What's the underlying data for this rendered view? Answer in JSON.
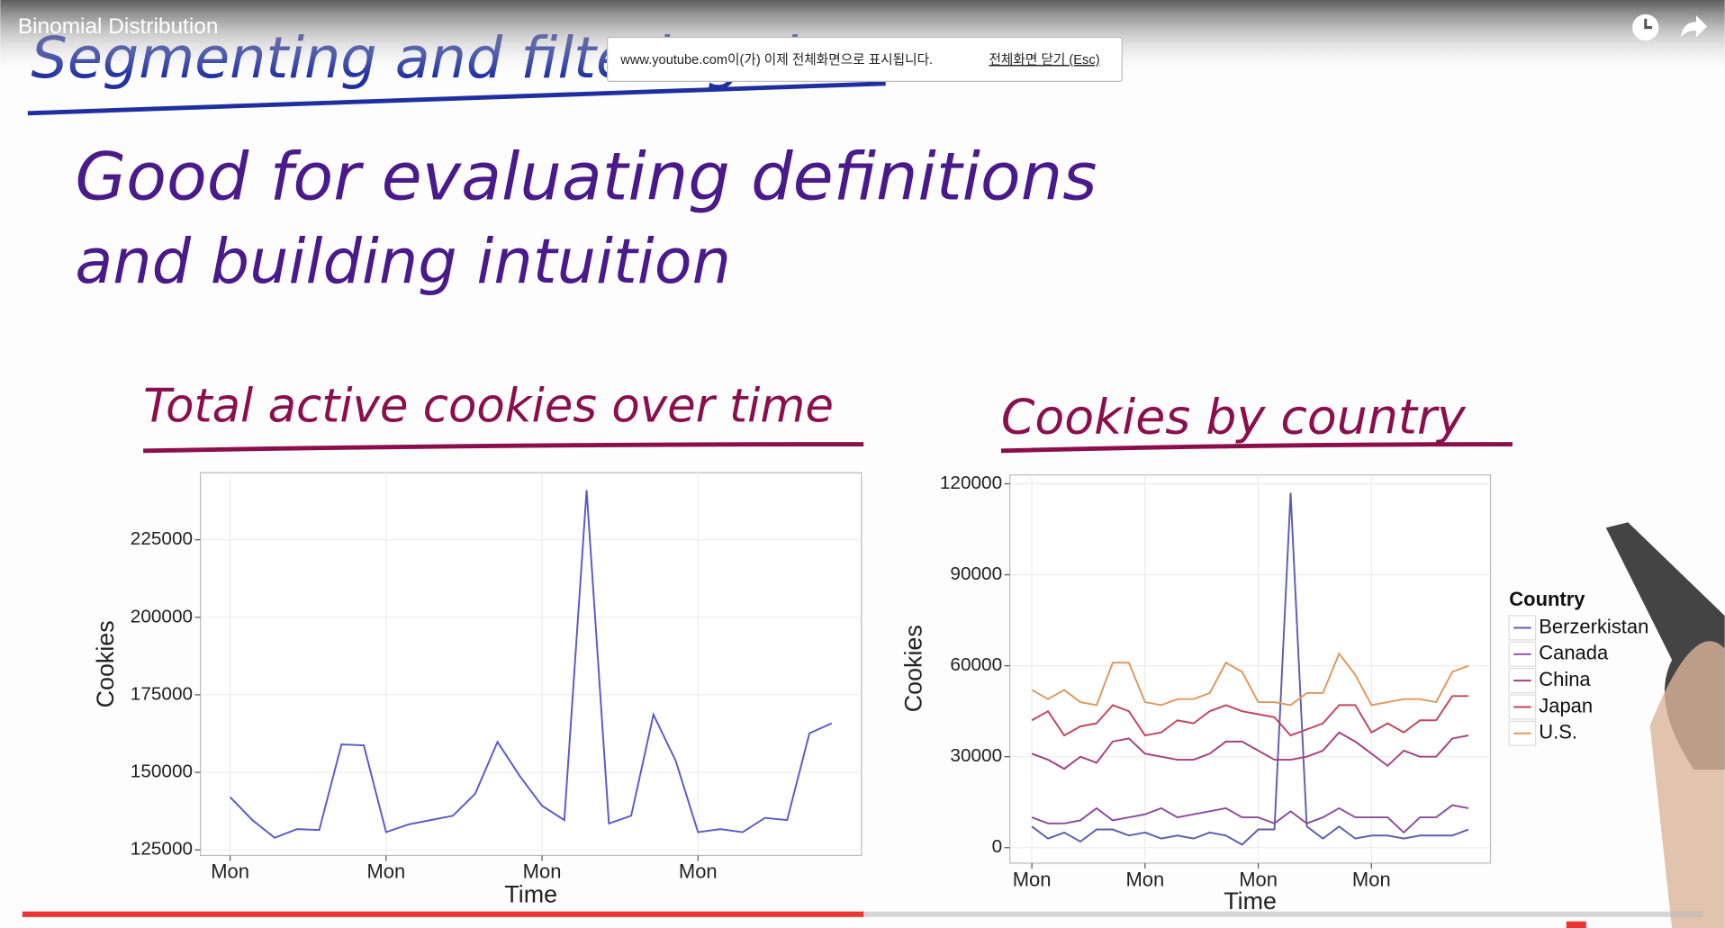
{
  "video": {
    "title": "Binomial Distribution"
  },
  "notification": {
    "message": "www.youtube.com이(가) 이제 전체화면으로 표시됩니다.",
    "link": "전체화면 닫기 (Esc)"
  },
  "slide": {
    "heading": "Segmenting and filtering data",
    "lines": [
      "Good for evaluating definitions",
      "and building intuition"
    ]
  },
  "chart_data": [
    {
      "type": "line",
      "title": "Total active cookies over time",
      "xlabel": "Time",
      "ylabel": "Cookies",
      "categories": [
        "Mon",
        null,
        null,
        null,
        null,
        null,
        null,
        "Mon",
        null,
        null,
        null,
        null,
        null,
        null,
        "Mon",
        null,
        null,
        null,
        null,
        null,
        null,
        "Mon",
        null,
        null,
        null,
        null,
        null,
        null
      ],
      "series": [
        {
          "name": null,
          "color": "#5a5ac8",
          "values": [
            142000,
            134600,
            128900,
            131700,
            131400,
            159000,
            158700,
            130700,
            133200,
            134600,
            136000,
            143100,
            159800,
            148800,
            139200,
            134600,
            241000,
            133500,
            136000,
            168600,
            153700,
            130700,
            131700,
            130700,
            135300,
            134600,
            162600,
            165800
          ]
        }
      ],
      "ylim": [
        123200,
        246600
      ],
      "yticks": [
        125000,
        150000,
        175000,
        200000,
        225000
      ],
      "grid": true
    },
    {
      "type": "line",
      "title": "Cookies by country",
      "xlabel": "Time",
      "ylabel": "Cookies",
      "legend_title": "Country",
      "legend": "right",
      "categories": [
        "Mon",
        null,
        null,
        null,
        null,
        null,
        null,
        "Mon",
        null,
        null,
        null,
        null,
        null,
        null,
        "Mon",
        null,
        null,
        null,
        null,
        null,
        null,
        "Mon",
        null,
        null,
        null,
        null,
        null,
        null
      ],
      "series": [
        {
          "name": "Berzerkistan",
          "color": "#5e5eb0",
          "values": [
            7000,
            3000,
            5000,
            2000,
            6000,
            6000,
            4000,
            5000,
            3000,
            4000,
            3000,
            5000,
            4000,
            1000,
            6000,
            6000,
            117000,
            7000,
            3000,
            7000,
            3000,
            4000,
            4000,
            3000,
            4000,
            4000,
            4000,
            6000
          ]
        },
        {
          "name": "Canada",
          "color": "#8a4c9c",
          "values": [
            10000,
            8000,
            8000,
            9000,
            13000,
            9000,
            10000,
            11000,
            13000,
            10000,
            11000,
            12000,
            13000,
            10000,
            10000,
            8000,
            12000,
            8000,
            10000,
            13000,
            10000,
            10000,
            10000,
            5000,
            10000,
            10000,
            14000,
            13000
          ]
        },
        {
          "name": "China",
          "color": "#a5407e",
          "values": [
            31000,
            29000,
            26000,
            30000,
            28000,
            35000,
            36000,
            31000,
            30000,
            29000,
            29000,
            31000,
            35000,
            35000,
            32000,
            29000,
            29000,
            30000,
            32000,
            38000,
            35000,
            31000,
            27000,
            32000,
            30000,
            30000,
            36000,
            37000
          ]
        },
        {
          "name": "Japan",
          "color": "#c2455e",
          "values": [
            42000,
            45000,
            37000,
            40000,
            41000,
            47000,
            45000,
            37000,
            38000,
            42000,
            41000,
            45000,
            47000,
            45000,
            44000,
            43000,
            37000,
            39000,
            41000,
            47000,
            47000,
            38000,
            41000,
            38000,
            42000,
            42000,
            50000,
            50000
          ]
        },
        {
          "name": "U.S.",
          "color": "#e0975e",
          "values": [
            52000,
            49000,
            52000,
            48000,
            47000,
            61000,
            61000,
            48000,
            47000,
            49000,
            49000,
            51000,
            61000,
            58000,
            48000,
            48000,
            47000,
            51000,
            51000,
            64000,
            57000,
            47000,
            48000,
            49000,
            49000,
            48000,
            58000,
            60000
          ]
        }
      ],
      "ylim": [
        -5100,
        122900
      ],
      "yticks": [
        0,
        30000,
        60000,
        90000,
        120000
      ],
      "grid": true
    }
  ]
}
